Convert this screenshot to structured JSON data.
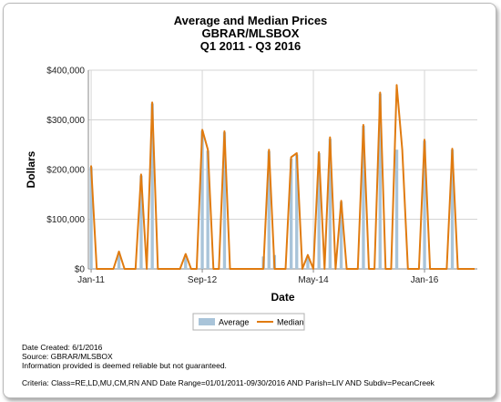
{
  "chart_data": {
    "type": "bar+line",
    "title": "Average and Median Prices",
    "subtitle1": "GBRAR/MLSBOX",
    "subtitle2": "Q1 2011 - Q3 2016",
    "xlabel": "Date",
    "ylabel": "Dollars",
    "ylim": [
      0,
      400000
    ],
    "yticks": [
      "$0",
      "$100,000",
      "$200,000",
      "$300,000",
      "$400,000"
    ],
    "ytick_values": [
      0,
      100000,
      200000,
      300000,
      400000
    ],
    "xticks": [
      {
        "label": "Jan-11",
        "month": 0
      },
      {
        "label": "Sep-12",
        "month": 20
      },
      {
        "label": "May-14",
        "month": 40
      },
      {
        "label": "Jan-16",
        "month": 60
      }
    ],
    "grid": true,
    "legend_position": "bottom-center",
    "start": "2011-01",
    "series": [
      {
        "name": "Average",
        "type": "bar",
        "color": "#a9c4d9",
        "values": [
          205000,
          0,
          0,
          0,
          0,
          33000,
          0,
          0,
          0,
          188000,
          0,
          333000,
          0,
          0,
          0,
          0,
          0,
          28000,
          0,
          0,
          278000,
          238000,
          0,
          0,
          275000,
          0,
          0,
          0,
          0,
          0,
          0,
          25000,
          237000,
          28000,
          0,
          0,
          222000,
          230000,
          0,
          25000,
          0,
          233000,
          0,
          262000,
          0,
          135000,
          0,
          0,
          0,
          288000,
          0,
          0,
          353000,
          0,
          0,
          240000,
          0,
          0,
          0,
          0,
          258000,
          0,
          0,
          0,
          0,
          240000,
          0,
          0,
          0,
          0
        ]
      },
      {
        "name": "Median",
        "type": "line",
        "color": "#e07b10",
        "values": [
          208000,
          0,
          0,
          0,
          0,
          35000,
          0,
          0,
          0,
          190000,
          0,
          335000,
          0,
          0,
          0,
          0,
          0,
          30000,
          0,
          0,
          280000,
          240000,
          0,
          0,
          277000,
          0,
          0,
          0,
          0,
          0,
          0,
          0,
          240000,
          0,
          0,
          0,
          225000,
          233000,
          0,
          28000,
          0,
          235000,
          0,
          265000,
          0,
          137000,
          0,
          0,
          0,
          290000,
          0,
          0,
          355000,
          0,
          0,
          370000,
          240000,
          0,
          0,
          0,
          260000,
          0,
          0,
          0,
          0,
          242000,
          0,
          0,
          0,
          0
        ]
      }
    ]
  },
  "footer": {
    "date_created": "Date Created: 6/1/2016",
    "source": "Source: GBRAR/MLSBOX",
    "disclaimer": "Information provided is deemed reliable but not guaranteed.",
    "criteria": "Criteria: Class=RE,LD,MU,CM,RN AND Date Range=01/01/2011-09/30/2016 AND Parish=LIV AND Subdiv=PecanCreek"
  }
}
